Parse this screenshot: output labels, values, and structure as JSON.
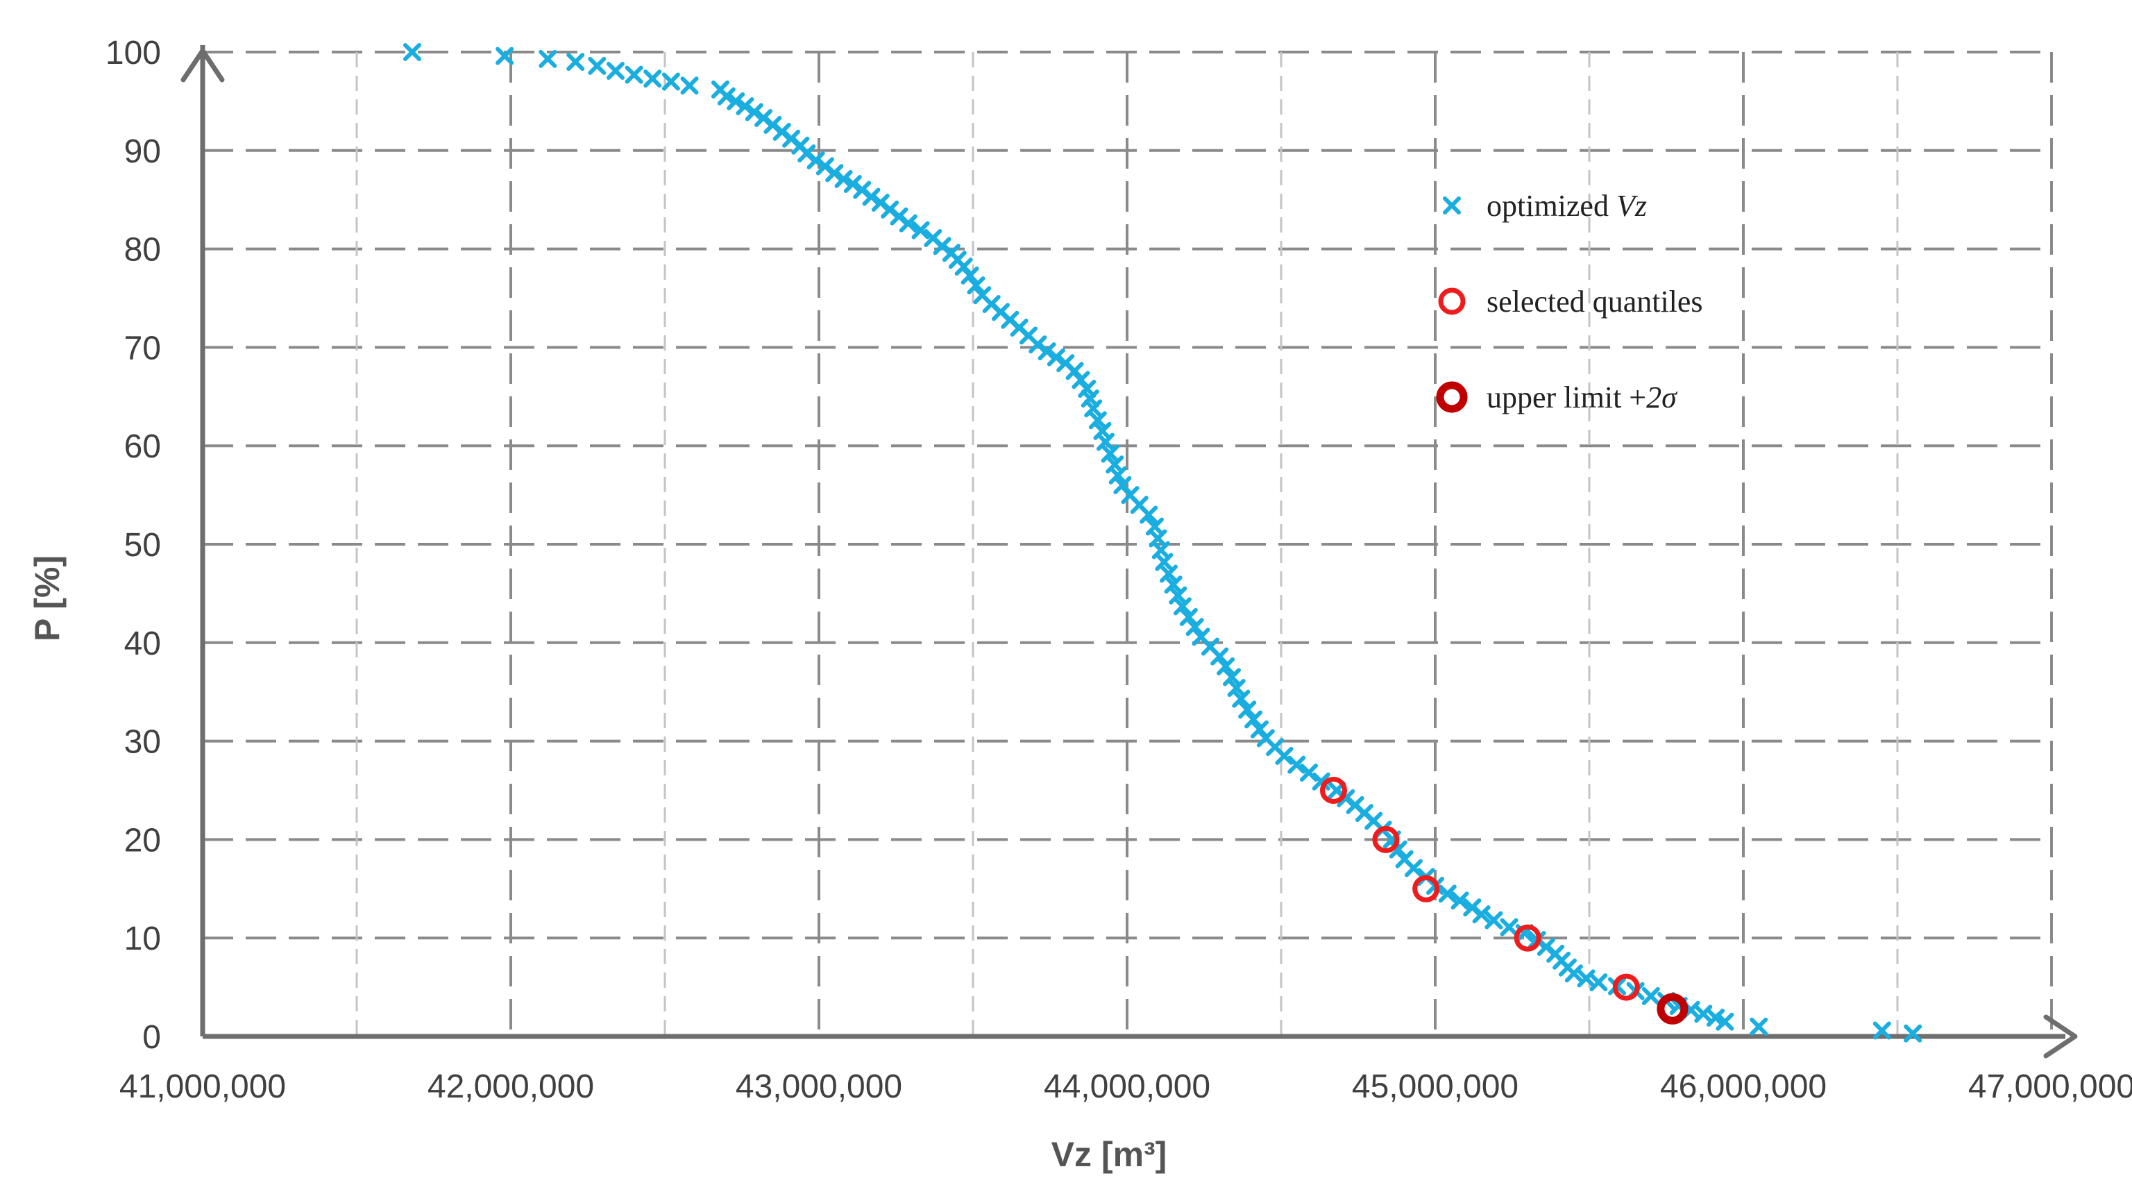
{
  "chart_data": {
    "type": "scatter",
    "xlabel": "Vz [m³]",
    "ylabel": "P [%]",
    "xlim": [
      41000000,
      47000000
    ],
    "ylim": [
      0,
      100
    ],
    "x_ticks": [
      "41,000,000",
      "42,000,000",
      "43,000,000",
      "44,000,000",
      "45,000,000",
      "46,000,000",
      "47,000,000"
    ],
    "y_ticks": [
      "0",
      "10",
      "20",
      "30",
      "40",
      "50",
      "60",
      "70",
      "80",
      "90",
      "100"
    ],
    "grid": true,
    "legend_position": "top-right",
    "legend": [
      {
        "label": "optimized ",
        "label_italic": "Vz",
        "marker": "cross",
        "color": "#1AAEE0"
      },
      {
        "label": "selected quantiles",
        "label_italic": "",
        "marker": "circle",
        "color": "#EE1C1C"
      },
      {
        "label": "upper limit +",
        "label_italic": "2σ",
        "marker": "circle-thick",
        "color": "#C00000"
      }
    ],
    "series": [
      {
        "marker": "cross",
        "color": "#1AAEE0",
        "points": [
          [
            41680000,
            100.0
          ],
          [
            41980000,
            99.6
          ],
          [
            42120000,
            99.3
          ],
          [
            42210000,
            99.0
          ],
          [
            42280000,
            98.6
          ],
          [
            42340000,
            98.1
          ],
          [
            42400000,
            97.7
          ],
          [
            42460000,
            97.3
          ],
          [
            42520000,
            97.0
          ],
          [
            42580000,
            96.6
          ],
          [
            42680000,
            96.2
          ],
          [
            42700000,
            95.5
          ],
          [
            42730000,
            95.0
          ],
          [
            42760000,
            94.5
          ],
          [
            42790000,
            93.9
          ],
          [
            42820000,
            93.3
          ],
          [
            42850000,
            92.6
          ],
          [
            42880000,
            91.9
          ],
          [
            42910000,
            91.2
          ],
          [
            42940000,
            90.5
          ],
          [
            42960000,
            89.7
          ],
          [
            42990000,
            89.0
          ],
          [
            43020000,
            88.4
          ],
          [
            43050000,
            87.7
          ],
          [
            43080000,
            87.1
          ],
          [
            43110000,
            86.6
          ],
          [
            43140000,
            86.0
          ],
          [
            43170000,
            85.3
          ],
          [
            43200000,
            84.7
          ],
          [
            43230000,
            84.0
          ],
          [
            43260000,
            83.3
          ],
          [
            43290000,
            82.6
          ],
          [
            43330000,
            81.9
          ],
          [
            43370000,
            81.1
          ],
          [
            43400000,
            80.3
          ],
          [
            43430000,
            79.6
          ],
          [
            43450000,
            78.9
          ],
          [
            43470000,
            78.2
          ],
          [
            43490000,
            77.3
          ],
          [
            43510000,
            76.3
          ],
          [
            43530000,
            75.3
          ],
          [
            43560000,
            74.4
          ],
          [
            43590000,
            73.6
          ],
          [
            43620000,
            72.8
          ],
          [
            43650000,
            72.0
          ],
          [
            43680000,
            71.2
          ],
          [
            43710000,
            70.3
          ],
          [
            43740000,
            69.6
          ],
          [
            43770000,
            69.0
          ],
          [
            43800000,
            68.4
          ],
          [
            43830000,
            67.6
          ],
          [
            43850000,
            66.7
          ],
          [
            43870000,
            65.8
          ],
          [
            43880000,
            64.8
          ],
          [
            43890000,
            63.8
          ],
          [
            43905000,
            62.6
          ],
          [
            43920000,
            61.5
          ],
          [
            43930000,
            60.4
          ],
          [
            43945000,
            59.2
          ],
          [
            43960000,
            58.1
          ],
          [
            43970000,
            57.0
          ],
          [
            43985000,
            56.0
          ],
          [
            44010000,
            55.0
          ],
          [
            44040000,
            54.0
          ],
          [
            44070000,
            53.0
          ],
          [
            44090000,
            51.8
          ],
          [
            44100000,
            50.6
          ],
          [
            44110000,
            49.4
          ],
          [
            44120000,
            48.2
          ],
          [
            44135000,
            47.0
          ],
          [
            44150000,
            45.9
          ],
          [
            44165000,
            44.8
          ],
          [
            44180000,
            43.7
          ],
          [
            44200000,
            42.6
          ],
          [
            44220000,
            41.6
          ],
          [
            44240000,
            40.6
          ],
          [
            44270000,
            39.6
          ],
          [
            44300000,
            38.6
          ],
          [
            44320000,
            37.6
          ],
          [
            44340000,
            36.5
          ],
          [
            44355000,
            35.4
          ],
          [
            44370000,
            34.3
          ],
          [
            44390000,
            33.2
          ],
          [
            44410000,
            32.2
          ],
          [
            44430000,
            31.2
          ],
          [
            44450000,
            30.3
          ],
          [
            44480000,
            29.4
          ],
          [
            44510000,
            28.5
          ],
          [
            44550000,
            27.6
          ],
          [
            44590000,
            26.8
          ],
          [
            44630000,
            25.9
          ],
          [
            44680000,
            25.0
          ],
          [
            44710000,
            24.2
          ],
          [
            44740000,
            23.5
          ],
          [
            44770000,
            22.7
          ],
          [
            44800000,
            21.9
          ],
          [
            44830000,
            21.0
          ],
          [
            44860000,
            20.0
          ],
          [
            44880000,
            19.0
          ],
          [
            44900000,
            18.0
          ],
          [
            44930000,
            17.1
          ],
          [
            44970000,
            16.2
          ],
          [
            45000000,
            15.3
          ],
          [
            45040000,
            14.5
          ],
          [
            45080000,
            13.8
          ],
          [
            45120000,
            13.1
          ],
          [
            45150000,
            12.4
          ],
          [
            45190000,
            11.8
          ],
          [
            45240000,
            11.1
          ],
          [
            45290000,
            10.5
          ],
          [
            45330000,
            9.8
          ],
          [
            45360000,
            9.1
          ],
          [
            45390000,
            8.4
          ],
          [
            45410000,
            7.7
          ],
          [
            45430000,
            7.0
          ],
          [
            45450000,
            6.4
          ],
          [
            45490000,
            5.9
          ],
          [
            45530000,
            5.5
          ],
          [
            45590000,
            5.1
          ],
          [
            45650000,
            4.6
          ],
          [
            45700000,
            4.1
          ],
          [
            45750000,
            3.6
          ],
          [
            45790000,
            3.1
          ],
          [
            45830000,
            2.7
          ],
          [
            45870000,
            2.3
          ],
          [
            45910000,
            1.9
          ],
          [
            45940000,
            1.5
          ],
          [
            46050000,
            1.0
          ],
          [
            46450000,
            0.6
          ],
          [
            46550000,
            0.3
          ]
        ]
      },
      {
        "marker": "circle",
        "color": "#EE1C1C",
        "points": [
          [
            44670000,
            25
          ],
          [
            44840000,
            20
          ],
          [
            44970000,
            15
          ],
          [
            45300000,
            10
          ],
          [
            45620000,
            5
          ]
        ]
      },
      {
        "marker": "circle-thick",
        "color": "#C00000",
        "points": [
          [
            45770000,
            2.8
          ]
        ]
      }
    ]
  }
}
